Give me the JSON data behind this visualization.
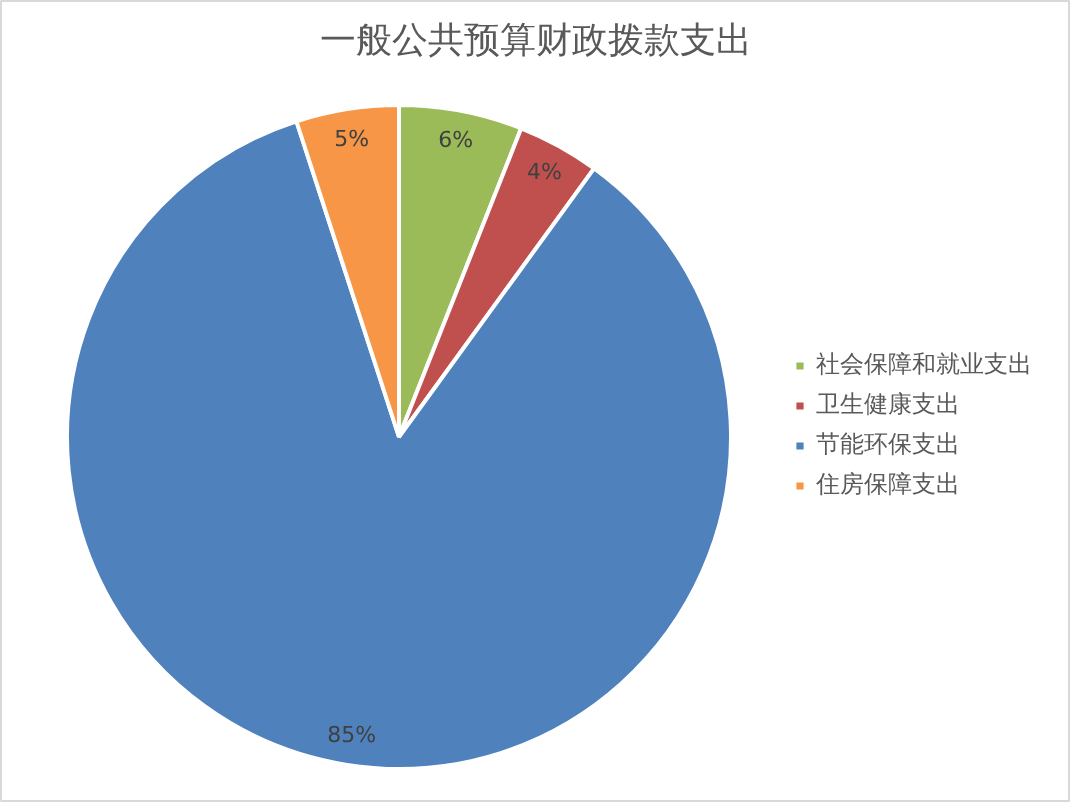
{
  "chart_data": {
    "type": "pie",
    "title": "一般公共预算财政拨款支出",
    "categories": [
      "社会保障和就业支出",
      "卫生健康支出",
      "节能环保支出",
      "住房保障支出"
    ],
    "values": [
      6,
      4,
      85,
      5
    ],
    "colors": [
      "#9bbb59",
      "#c0504d",
      "#4f81bd",
      "#f79646"
    ],
    "value_labels": [
      "6%",
      "4%",
      "85%",
      "5%"
    ],
    "legend": "right"
  }
}
